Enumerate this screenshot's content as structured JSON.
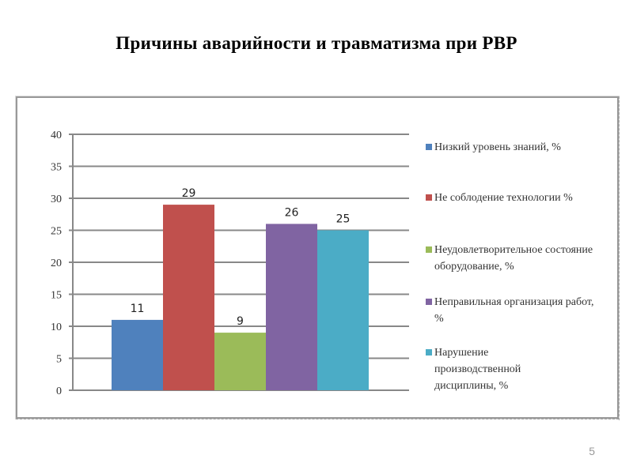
{
  "title": "Причины аварийности и травматизма при РВР",
  "page_number": "5",
  "chart_data": {
    "type": "bar",
    "title": "",
    "categories": [
      ""
    ],
    "series": [
      {
        "name": "Низкий уровень знаний, %",
        "values": [
          11
        ],
        "color": "#4f81bd"
      },
      {
        "name": "Не соблодение технологии  %",
        "values": [
          29
        ],
        "color": "#c0504d"
      },
      {
        "name": "Неудовлетворительное состояние оборудование, %",
        "values": [
          9
        ],
        "color": "#9bbb59"
      },
      {
        "name": "Неправильная организация работ, %",
        "values": [
          26
        ],
        "color": "#8064a2"
      },
      {
        "name": "Нарушение производственной дисциплины, %",
        "values": [
          25
        ],
        "color": "#4bacc6"
      }
    ],
    "data_labels": [
      "11",
      "29",
      "9",
      "26",
      "25"
    ],
    "yticks": [
      "0",
      "5",
      "10",
      "15",
      "20",
      "25",
      "30",
      "35",
      "40"
    ],
    "ylim": [
      0,
      40
    ],
    "grid": true,
    "legend": "right",
    "xlabel": "",
    "ylabel": ""
  }
}
